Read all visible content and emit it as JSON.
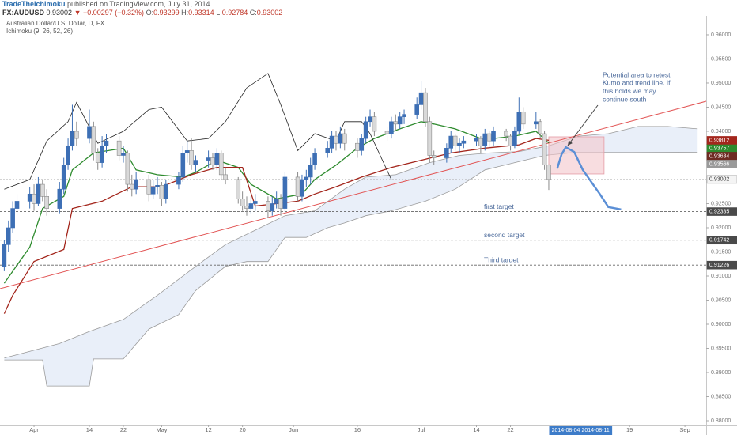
{
  "chart_data": {
    "type": "candlestick",
    "publisher": "TradeTheIchimoku",
    "published": " published on TradingView.com, July 31, 2014",
    "symbol": "FX:AUDUSD",
    "change": "▼ −0.00297 (−0.32%)",
    "ohlc_labels": [
      "O:",
      "H:",
      "L:",
      "C:"
    ],
    "title": "Australian Dollar/U.S. Dollar, D, FX",
    "indicator": "Ichimoku (9, 26, 52, 26)",
    "x": [
      "2014-03-25",
      "2014-03-26",
      "2014-03-27",
      "2014-03-28",
      "2014-03-31",
      "2014-04-01",
      "2014-04-02",
      "2014-04-03",
      "2014-04-04",
      "2014-04-07",
      "2014-04-08",
      "2014-04-09",
      "2014-04-10",
      "2014-04-11",
      "2014-04-14",
      "2014-04-15",
      "2014-04-16",
      "2014-04-17",
      "2014-04-18",
      "2014-04-21",
      "2014-04-22",
      "2014-04-23",
      "2014-04-24",
      "2014-04-25",
      "2014-04-28",
      "2014-04-29",
      "2014-04-30",
      "2014-05-01",
      "2014-05-02",
      "2014-05-05",
      "2014-05-06",
      "2014-05-07",
      "2014-05-08",
      "2014-05-09",
      "2014-05-12",
      "2014-05-13",
      "2014-05-14",
      "2014-05-15",
      "2014-05-16",
      "2014-05-19",
      "2014-05-20",
      "2014-05-21",
      "2014-05-22",
      "2014-05-23",
      "2014-05-26",
      "2014-05-27",
      "2014-05-28",
      "2014-05-29",
      "2014-05-30",
      "2014-06-02",
      "2014-06-03",
      "2014-06-04",
      "2014-06-05",
      "2014-06-06",
      "2014-06-09",
      "2014-06-10",
      "2014-06-11",
      "2014-06-12",
      "2014-06-13",
      "2014-06-16",
      "2014-06-17",
      "2014-06-18",
      "2014-06-19",
      "2014-06-20",
      "2014-06-23",
      "2014-06-24",
      "2014-06-25",
      "2014-06-26",
      "2014-06-27",
      "2014-06-30",
      "2014-07-01",
      "2014-07-02",
      "2014-07-03",
      "2014-07-04",
      "2014-07-07",
      "2014-07-08",
      "2014-07-09",
      "2014-07-10",
      "2014-07-11",
      "2014-07-14",
      "2014-07-15",
      "2014-07-16",
      "2014-07-17",
      "2014-07-18",
      "2014-07-21",
      "2014-07-22",
      "2014-07-23",
      "2014-07-24",
      "2014-07-25",
      "2014-07-28",
      "2014-07-29",
      "2014-07-30",
      "2014-07-31"
    ],
    "open": [
      0.912,
      0.9165,
      0.92,
      0.924,
      0.9255,
      0.927,
      0.925,
      0.929,
      0.9265,
      0.924,
      0.928,
      0.933,
      0.937,
      0.94,
      0.9385,
      0.941,
      0.9355,
      0.9335,
      0.937,
      0.938,
      0.935,
      0.9355,
      0.929,
      0.928,
      0.93,
      0.927,
      0.9285,
      0.9288,
      0.926,
      0.929,
      0.9305,
      0.9355,
      0.936,
      0.933,
      0.934,
      0.9345,
      0.933,
      0.9355,
      0.931,
      0.93,
      0.926,
      0.9245,
      0.924,
      0.925,
      0.9255,
      0.9235,
      0.925,
      0.926,
      0.924,
      0.9305,
      0.9265,
      0.93,
      0.9305,
      0.933,
      0.9355,
      0.9365,
      0.939,
      0.9375,
      0.9395,
      0.9375,
      0.936,
      0.9385,
      0.942,
      0.943,
      0.94,
      0.9395,
      0.942,
      0.9415,
      0.943,
      0.9435,
      0.9455,
      0.948,
      0.942,
      0.935,
      0.9345,
      0.9365,
      0.939,
      0.937,
      0.9375,
      0.938,
      0.9385,
      0.937,
      0.9395,
      0.938,
      0.94,
      0.939,
      0.937,
      0.94,
      0.944,
      0.9415,
      0.942,
      0.9395,
      0.93299
    ],
    "high": [
      0.9175,
      0.9215,
      0.9255,
      0.927,
      0.9285,
      0.929,
      0.9305,
      0.93,
      0.928,
      0.9295,
      0.9345,
      0.9385,
      0.9455,
      0.942,
      0.9445,
      0.942,
      0.9365,
      0.939,
      0.9395,
      0.939,
      0.937,
      0.936,
      0.931,
      0.9315,
      0.931,
      0.93,
      0.9305,
      0.9295,
      0.93,
      0.9315,
      0.937,
      0.938,
      0.9385,
      0.935,
      0.936,
      0.9355,
      0.9365,
      0.936,
      0.9325,
      0.9305,
      0.9275,
      0.9265,
      0.9265,
      0.927,
      0.9265,
      0.9265,
      0.9275,
      0.927,
      0.9315,
      0.9315,
      0.931,
      0.932,
      0.9345,
      0.9365,
      0.938,
      0.94,
      0.94,
      0.941,
      0.9405,
      0.9385,
      0.9395,
      0.943,
      0.9445,
      0.944,
      0.941,
      0.943,
      0.9435,
      0.944,
      0.9445,
      0.947,
      0.9505,
      0.949,
      0.943,
      0.936,
      0.9375,
      0.94,
      0.9395,
      0.9385,
      0.939,
      0.9395,
      0.939,
      0.9405,
      0.94,
      0.941,
      0.9405,
      0.9395,
      0.941,
      0.947,
      0.945,
      0.944,
      0.9425,
      0.94,
      0.93314
    ],
    "low": [
      0.911,
      0.915,
      0.919,
      0.9225,
      0.924,
      0.9235,
      0.9245,
      0.9255,
      0.9225,
      0.923,
      0.927,
      0.932,
      0.936,
      0.937,
      0.9375,
      0.934,
      0.932,
      0.9325,
      0.9355,
      0.934,
      0.9335,
      0.9275,
      0.9265,
      0.927,
      0.9255,
      0.926,
      0.927,
      0.9245,
      0.925,
      0.928,
      0.9295,
      0.9335,
      0.932,
      0.9315,
      0.9325,
      0.932,
      0.932,
      0.93,
      0.929,
      0.925,
      0.9235,
      0.9225,
      0.923,
      0.9235,
      0.922,
      0.9225,
      0.924,
      0.9225,
      0.923,
      0.9255,
      0.9255,
      0.9285,
      0.929,
      0.932,
      0.9345,
      0.9355,
      0.936,
      0.9365,
      0.936,
      0.9345,
      0.935,
      0.9375,
      0.941,
      0.939,
      0.938,
      0.9385,
      0.94,
      0.9405,
      0.9415,
      0.9425,
      0.9445,
      0.941,
      0.9335,
      0.933,
      0.9335,
      0.9355,
      0.936,
      0.9355,
      0.9365,
      0.937,
      0.9355,
      0.936,
      0.9365,
      0.937,
      0.938,
      0.936,
      0.9365,
      0.9395,
      0.9405,
      0.9405,
      0.9385,
      0.932,
      0.92784
    ],
    "close": [
      0.9165,
      0.92,
      0.924,
      0.9255,
      0.927,
      0.925,
      0.929,
      0.9265,
      0.924,
      0.928,
      0.933,
      0.937,
      0.94,
      0.9385,
      0.941,
      0.9355,
      0.9335,
      0.937,
      0.938,
      0.935,
      0.9355,
      0.929,
      0.928,
      0.93,
      0.927,
      0.9285,
      0.9288,
      0.926,
      0.929,
      0.9305,
      0.9355,
      0.936,
      0.933,
      0.934,
      0.9345,
      0.933,
      0.9355,
      0.931,
      0.93,
      0.926,
      0.9245,
      0.924,
      0.925,
      0.9255,
      0.9235,
      0.925,
      0.926,
      0.924,
      0.9305,
      0.9265,
      0.93,
      0.9305,
      0.933,
      0.9355,
      0.9365,
      0.939,
      0.9375,
      0.9395,
      0.9375,
      0.936,
      0.9385,
      0.942,
      0.943,
      0.94,
      0.9395,
      0.942,
      0.9415,
      0.943,
      0.9435,
      0.9455,
      0.948,
      0.942,
      0.935,
      0.9345,
      0.9365,
      0.939,
      0.937,
      0.9375,
      0.938,
      0.9385,
      0.937,
      0.9395,
      0.938,
      0.94,
      0.939,
      0.937,
      0.94,
      0.944,
      0.9415,
      0.942,
      0.9395,
      0.933,
      0.93002
    ],
    "up_color": "#3d6fb5",
    "down_color": "#d9d9d9",
    "lines": [
      {
        "color": "#2e8b2e",
        "tag": true,
        "x": [
          "2014-03-25",
          "2014-03-31",
          "2014-04-03",
          "2014-04-08",
          "2014-04-10",
          "2014-04-15",
          "2014-04-22",
          "2014-04-25",
          "2014-04-30",
          "2014-05-06",
          "2014-05-09",
          "2014-05-14",
          "2014-05-19",
          "2014-05-22",
          "2014-05-28",
          "2014-06-03",
          "2014-06-06",
          "2014-06-11",
          "2014-06-16",
          "2014-06-20",
          "2014-06-26",
          "2014-07-01",
          "2014-07-04",
          "2014-07-09",
          "2014-07-15",
          "2014-07-18",
          "2014-07-23",
          "2014-07-28",
          "2014-07-31"
        ],
        "values": [
          0.9085,
          0.916,
          0.924,
          0.9265,
          0.932,
          0.9355,
          0.9365,
          0.932,
          0.931,
          0.9305,
          0.9315,
          0.934,
          0.9325,
          0.929,
          0.926,
          0.927,
          0.93,
          0.933,
          0.9365,
          0.9385,
          0.9405,
          0.942,
          0.9415,
          0.9405,
          0.9385,
          0.9385,
          0.939,
          0.94,
          0.93757
        ]
      },
      {
        "color": "#a3261c",
        "tag": true,
        "x": [
          "2014-03-25",
          "2014-03-27",
          "2014-04-01",
          "2014-04-08",
          "2014-04-10",
          "2014-04-17",
          "2014-04-24",
          "2014-05-01",
          "2014-05-08",
          "2014-05-14",
          "2014-05-20",
          "2014-05-23",
          "2014-06-02",
          "2014-06-06",
          "2014-06-11",
          "2014-06-17",
          "2014-06-24",
          "2014-07-01",
          "2014-07-08",
          "2014-07-16",
          "2014-07-24",
          "2014-07-28",
          "2014-07-31"
        ],
        "values": [
          0.9022,
          0.906,
          0.913,
          0.9155,
          0.924,
          0.9255,
          0.9285,
          0.9285,
          0.931,
          0.9325,
          0.9325,
          0.9245,
          0.9255,
          0.927,
          0.9285,
          0.9305,
          0.9325,
          0.934,
          0.9355,
          0.9365,
          0.9372,
          0.9385,
          0.93812
        ]
      },
      {
        "color": "#222222",
        "tag": false,
        "x": [
          "2014-03-25",
          "2014-03-31",
          "2014-04-04",
          "2014-04-09",
          "2014-04-11",
          "2014-04-16",
          "2014-04-22",
          "2014-04-28",
          "2014-05-01",
          "2014-05-07",
          "2014-05-12",
          "2014-05-16",
          "2014-05-21",
          "2014-05-26",
          "2014-05-29",
          "2014-06-02",
          "2014-06-06",
          "2014-06-11",
          "2014-06-13",
          "2014-06-17",
          "2014-06-19",
          "2014-06-24"
        ],
        "values": [
          0.928,
          0.93,
          0.938,
          0.942,
          0.946,
          0.9375,
          0.94,
          0.9445,
          0.945,
          0.938,
          0.9385,
          0.942,
          0.949,
          0.952,
          0.9455,
          0.936,
          0.9395,
          0.938,
          0.942,
          0.942,
          0.9395,
          0.93
        ]
      }
    ],
    "cloud": {
      "fill": "#e9eff9",
      "line_color": "#9a9a9a",
      "upper": {
        "x": [
          "2014-03-25",
          "2014-04-07",
          "2014-04-14",
          "2014-04-22",
          "2014-04-30",
          "2014-05-09",
          "2014-05-16",
          "2014-05-23",
          "2014-05-30",
          "2014-06-06",
          "2014-06-13",
          "2014-06-18",
          "2014-06-25",
          "2014-07-03",
          "2014-07-10",
          "2014-07-17",
          "2014-07-24",
          "2014-07-31",
          "2014-08-07",
          "2014-08-14",
          "2014-08-21",
          "2014-08-28",
          "2014-09-04"
        ],
        "values": [
          0.893,
          0.896,
          0.8985,
          0.901,
          0.906,
          0.912,
          0.9165,
          0.9195,
          0.9225,
          0.9235,
          0.928,
          0.9305,
          0.931,
          0.9335,
          0.935,
          0.9355,
          0.9358,
          0.937,
          0.939,
          0.9395,
          0.941,
          0.941,
          0.9405
        ]
      },
      "lower": {
        "x": [
          "2014-03-25",
          "2014-04-03",
          "2014-04-04",
          "2014-04-14",
          "2014-04-15",
          "2014-04-22",
          "2014-04-28",
          "2014-05-05",
          "2014-05-09",
          "2014-05-16",
          "2014-05-21",
          "2014-05-26",
          "2014-05-30",
          "2014-06-04",
          "2014-06-09",
          "2014-06-13",
          "2014-06-18",
          "2014-06-24",
          "2014-07-02",
          "2014-07-09",
          "2014-07-16",
          "2014-07-23",
          "2014-07-30",
          "2014-08-06",
          "2014-08-20",
          "2014-09-04"
        ],
        "values": [
          0.8926,
          0.8926,
          0.8872,
          0.8872,
          0.8928,
          0.8928,
          0.899,
          0.902,
          0.907,
          0.912,
          0.913,
          0.913,
          0.918,
          0.918,
          0.92,
          0.921,
          0.9225,
          0.9235,
          0.9255,
          0.928,
          0.932,
          0.9335,
          0.935,
          0.9356,
          0.9356,
          0.93566
        ]
      }
    },
    "tags": [
      {
        "value": 0.93634,
        "color": "#6e2a22"
      },
      {
        "value": 0.93566,
        "color": "#9a9a9a"
      }
    ],
    "levels": [
      {
        "label": "first target",
        "value": 0.92335
      },
      {
        "label": "second target",
        "value": 0.91742
      },
      {
        "label": "Third target",
        "value": 0.91226
      }
    ],
    "trendline": {
      "color": "#e25555",
      "x": [
        "2014-03-24",
        "2014-09-06"
      ],
      "values": [
        0.90738,
        0.94623
      ]
    },
    "zone": {
      "color": "#f4c6cc",
      "x": [
        "2014-07-31",
        "2014-08-13"
      ],
      "values": [
        0.93885,
        0.93115
      ]
    },
    "projection": {
      "color": "#5b8fd6",
      "x": [
        "2014-08-02",
        "2014-08-03",
        "2014-08-04",
        "2014-08-06",
        "2014-08-08",
        "2014-08-12",
        "2014-08-14",
        "2014-08-17"
      ],
      "values": [
        0.9323,
        0.9352,
        0.9367,
        0.9357,
        0.932,
        0.927,
        0.9243,
        0.9238
      ]
    },
    "note": [
      "Potential area to retest",
      "Kumo and trend line. If",
      "this holds we may",
      "continue south"
    ],
    "xlim": [
      "2014-03-24",
      "2014-09-06"
    ],
    "ylim": [
      0.87918,
      0.96393
    ],
    "xticks": [
      {
        "value": "2014-04-01",
        "label": "Apr"
      },
      {
        "value": "2014-04-14",
        "label": "14"
      },
      {
        "value": "2014-04-22",
        "label": "22"
      },
      {
        "value": "2014-05-01",
        "label": "May"
      },
      {
        "value": "2014-05-12",
        "label": "12"
      },
      {
        "value": "2014-05-20",
        "label": "20"
      },
      {
        "value": "2014-06-01",
        "label": "Jun"
      },
      {
        "value": "2014-06-16",
        "label": "16"
      },
      {
        "value": "2014-07-01",
        "label": "Jul"
      },
      {
        "value": "2014-07-14",
        "label": "14"
      },
      {
        "value": "2014-07-22",
        "label": "22"
      },
      {
        "value": "2014-08-19",
        "label": "19"
      },
      {
        "value": "2014-09-01",
        "label": "Sep"
      }
    ],
    "x_highlight": [
      "2014-08-04",
      "2014-08-11"
    ],
    "yticks": [
      {
        "value": 0.96,
        "label": "0.96000"
      },
      {
        "value": 0.955,
        "label": "0.95500"
      },
      {
        "value": 0.95,
        "label": "0.95000"
      },
      {
        "value": 0.945,
        "label": "0.94500"
      },
      {
        "value": 0.94,
        "label": "0.94000"
      },
      {
        "value": 0.925,
        "label": "0.92500"
      },
      {
        "value": 0.92,
        "label": "0.92000"
      },
      {
        "value": 0.915,
        "label": "0.91500"
      },
      {
        "value": 0.91,
        "label": "0.91000"
      },
      {
        "value": 0.905,
        "label": "0.90500"
      },
      {
        "value": 0.9,
        "label": "0.90000"
      },
      {
        "value": 0.895,
        "label": "0.89500"
      },
      {
        "value": 0.89,
        "label": "0.89000"
      },
      {
        "value": 0.885,
        "label": "0.88500"
      },
      {
        "value": 0.88,
        "label": "0.88000"
      }
    ]
  }
}
